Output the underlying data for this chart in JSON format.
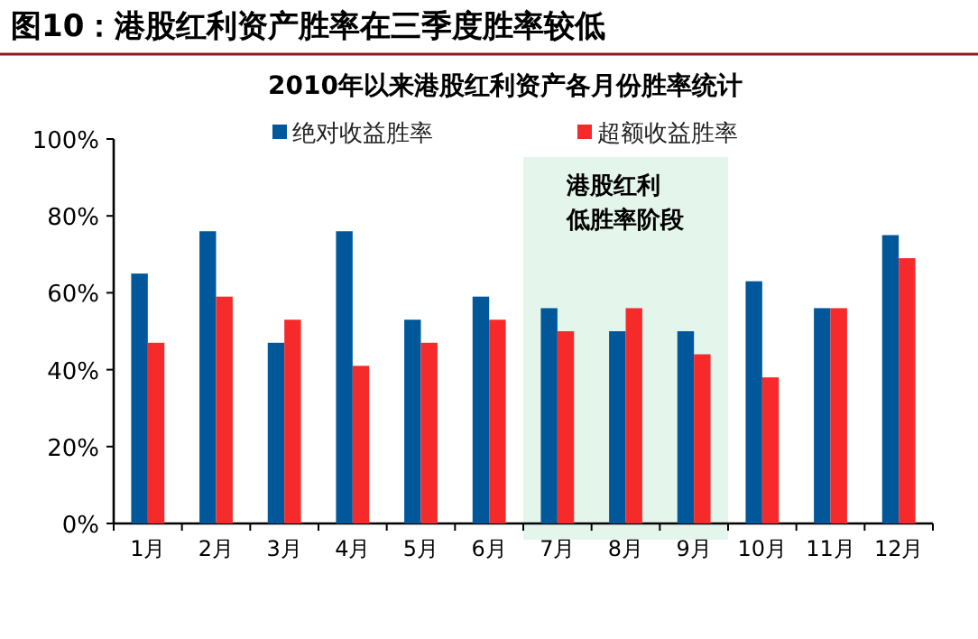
{
  "chart_data": {
    "type": "bar",
    "title": "图10：港股红利资产胜率在三季度胜率较低",
    "subtitle": "2010年以来港股红利资产各月份胜率统计",
    "categories": [
      "1月",
      "2月",
      "3月",
      "4月",
      "5月",
      "6月",
      "7月",
      "8月",
      "9月",
      "10月",
      "11月",
      "12月"
    ],
    "series": [
      {
        "name": "绝对收益胜率",
        "color": "#00579a",
        "values": [
          65,
          76,
          47,
          76,
          53,
          59,
          56,
          50,
          50,
          63,
          56,
          75
        ]
      },
      {
        "name": "超额收益胜率",
        "color": "#f62a2a",
        "values": [
          47,
          59,
          53,
          41,
          47,
          53,
          50,
          56,
          44,
          38,
          56,
          69
        ]
      }
    ],
    "ylim": [
      0,
      100
    ],
    "yticks": [
      {
        "value": 0,
        "label": "0%"
      },
      {
        "value": 20,
        "label": "20%"
      },
      {
        "value": 40,
        "label": "40%"
      },
      {
        "value": 60,
        "label": "60%"
      },
      {
        "value": 80,
        "label": "80%"
      },
      {
        "value": 100,
        "label": "100%"
      }
    ],
    "bands": [
      {
        "axis": "x",
        "from": "7月",
        "to": "9月",
        "label": "港股红利低胜率阶段",
        "color": "#e4f5ec"
      }
    ],
    "legend": "top",
    "grid": false
  }
}
